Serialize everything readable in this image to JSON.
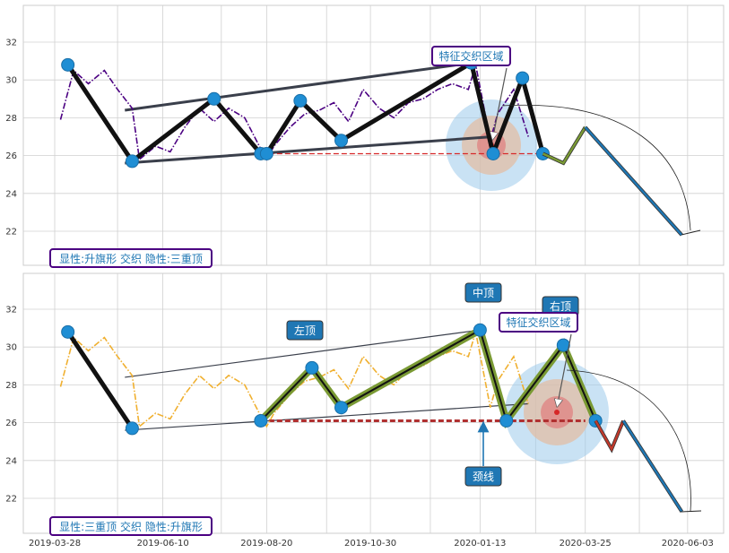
{
  "chart_data": [
    {
      "type": "line",
      "panel": "top",
      "ylim": [
        20.2,
        34
      ],
      "yticks": [
        "22",
        "24",
        "26",
        "28",
        "30",
        "32"
      ],
      "grid": true,
      "series": [
        {
          "role": "price",
          "color": "#4b0082",
          "style": "dash-dot",
          "x": [
            "2019-04-01",
            "2019-04-10",
            "2019-04-20",
            "2019-05-01",
            "2019-05-10",
            "2019-05-20",
            "2019-05-25",
            "2019-06-05",
            "2019-06-15",
            "2019-06-25",
            "2019-07-05",
            "2019-07-15",
            "2019-07-25",
            "2019-08-05",
            "2019-08-15",
            "2019-08-20",
            "2019-08-25",
            "2019-09-05",
            "2019-09-15",
            "2019-09-25",
            "2019-10-05",
            "2019-10-15",
            "2019-10-25",
            "2019-11-05",
            "2019-11-15",
            "2019-11-25",
            "2019-12-05",
            "2019-12-15",
            "2019-12-25",
            "2020-01-05",
            "2020-01-10",
            "2020-01-20",
            "2020-01-25",
            "2020-02-05",
            "2020-02-15"
          ],
          "y": [
            27.9,
            30.5,
            29.8,
            30.5,
            29.5,
            28.5,
            25.8,
            26.5,
            26.2,
            27.5,
            28.5,
            27.8,
            28.5,
            28,
            26.5,
            25.8,
            26.5,
            27.5,
            28.2,
            28.4,
            28.8,
            27.8,
            29.5,
            28.5,
            28,
            28.8,
            29,
            29.5,
            29.8,
            29.5,
            30.8,
            26.8,
            28.2,
            29.5,
            27
          ]
        },
        {
          "role": "pattern",
          "color": "#111111",
          "x": [
            "2019-04-06",
            "2019-05-20",
            "2019-07-15",
            "2019-08-16",
            "2019-08-20",
            "2019-09-12",
            "2019-10-10",
            "2020-01-07",
            "2020-01-22",
            "2020-02-11",
            "2020-02-25"
          ],
          "y": [
            30.8,
            25.7,
            29,
            26.1,
            26.1,
            28.9,
            26.8,
            30.9,
            26.1,
            30.1,
            26.1
          ]
        },
        {
          "role": "forecast",
          "color": "#7a9a34",
          "x": [
            "2020-02-25",
            "2020-03-10",
            "2020-03-25"
          ],
          "y": [
            26.1,
            25.6,
            27.5
          ]
        },
        {
          "role": "forecast",
          "color": "#1f77b4",
          "x": [
            "2020-03-25",
            "2020-05-30"
          ],
          "y": [
            27.5,
            21.8
          ]
        }
      ],
      "lines": [
        {
          "x": [
            "2019-05-15",
            "2020-01-07"
          ],
          "y": [
            28.4,
            30.9
          ],
          "color": "#3a3f4b"
        },
        {
          "x": [
            "2019-05-15",
            "2020-01-22"
          ],
          "y": [
            25.6,
            27.0
          ],
          "color": "#3a3f4b"
        },
        {
          "x": [
            "2019-08-16",
            "2020-02-25"
          ],
          "y": [
            26.1,
            26.1
          ],
          "color": "#d62728",
          "style": "dashed"
        }
      ],
      "annotation": {
        "text": "特征交织区域",
        "x": "2020-02-05",
        "y": 26.6
      },
      "label": "显性:升旗形 交织 隐性:三重顶"
    },
    {
      "type": "line",
      "panel": "bottom",
      "ylim": [
        20.2,
        34
      ],
      "yticks": [
        "22",
        "24",
        "26",
        "28",
        "30",
        "32"
      ],
      "xticks": [
        "2019-03-28",
        "2019-06-10",
        "2019-08-20",
        "2019-10-30",
        "2020-01-13",
        "2020-03-25",
        "2020-06-03"
      ],
      "grid": true,
      "series": [
        {
          "role": "price",
          "color": "#f0b030",
          "style": "dash-dot",
          "x": [
            "2019-04-01",
            "2019-04-10",
            "2019-04-20",
            "2019-05-01",
            "2019-05-10",
            "2019-05-20",
            "2019-05-25",
            "2019-06-05",
            "2019-06-15",
            "2019-06-25",
            "2019-07-05",
            "2019-07-15",
            "2019-07-25",
            "2019-08-05",
            "2019-08-15",
            "2019-08-20",
            "2019-08-25",
            "2019-09-05",
            "2019-09-15",
            "2019-09-25",
            "2019-10-05",
            "2019-10-15",
            "2019-10-25",
            "2019-11-05",
            "2019-11-15",
            "2019-11-25",
            "2019-12-05",
            "2019-12-15",
            "2019-12-25",
            "2020-01-05",
            "2020-01-10",
            "2020-01-20",
            "2020-01-25",
            "2020-02-05",
            "2020-02-15"
          ],
          "y": [
            27.9,
            30.5,
            29.8,
            30.5,
            29.5,
            28.5,
            25.8,
            26.5,
            26.2,
            27.5,
            28.5,
            27.8,
            28.5,
            28,
            26.5,
            25.8,
            26.5,
            27.5,
            28.2,
            28.4,
            28.8,
            27.8,
            29.5,
            28.5,
            28,
            28.8,
            29,
            29.5,
            29.8,
            29.5,
            30.8,
            26.8,
            28.2,
            29.5,
            27
          ]
        },
        {
          "role": "pattern-left",
          "color": "#111111",
          "x": [
            "2019-04-06",
            "2019-05-20"
          ],
          "y": [
            30.8,
            25.7
          ]
        },
        {
          "role": "pattern",
          "color": "#7a9a34",
          "x": [
            "2019-08-16",
            "2019-09-20",
            "2019-10-10",
            "2020-01-13",
            "2020-01-31",
            "2020-03-10",
            "2020-04-01"
          ],
          "y": [
            26.1,
            28.9,
            26.8,
            30.9,
            26.1,
            30.1,
            26.1
          ]
        },
        {
          "role": "forecast",
          "color": "#c0392b",
          "x": [
            "2020-04-01",
            "2020-04-12",
            "2020-04-20"
          ],
          "y": [
            26.1,
            24.6,
            26.1
          ]
        },
        {
          "role": "forecast",
          "color": "#1f77b4",
          "x": [
            "2020-04-20",
            "2020-05-30"
          ],
          "y": [
            26.1,
            21.3
          ]
        }
      ],
      "lines": [
        {
          "x": [
            "2019-05-15",
            "2020-01-13"
          ],
          "y": [
            28.4,
            30.9
          ],
          "color": "#3a3f4b"
        },
        {
          "x": [
            "2019-05-15",
            "2020-02-15"
          ],
          "y": [
            25.6,
            27.0
          ],
          "color": "#3a3f4b"
        },
        {
          "x": [
            "2019-08-16",
            "2020-03-25"
          ],
          "y": [
            26.1,
            26.1
          ],
          "color": "#b03030",
          "style": "dashed"
        }
      ],
      "annotations": [
        {
          "text": "左顶"
        },
        {
          "text": "中顶"
        },
        {
          "text": "右顶"
        },
        {
          "text": "特征交织区域"
        },
        {
          "text": "颈线"
        }
      ],
      "label": "显性:三重顶 交织 隐性:升旗形"
    }
  ]
}
